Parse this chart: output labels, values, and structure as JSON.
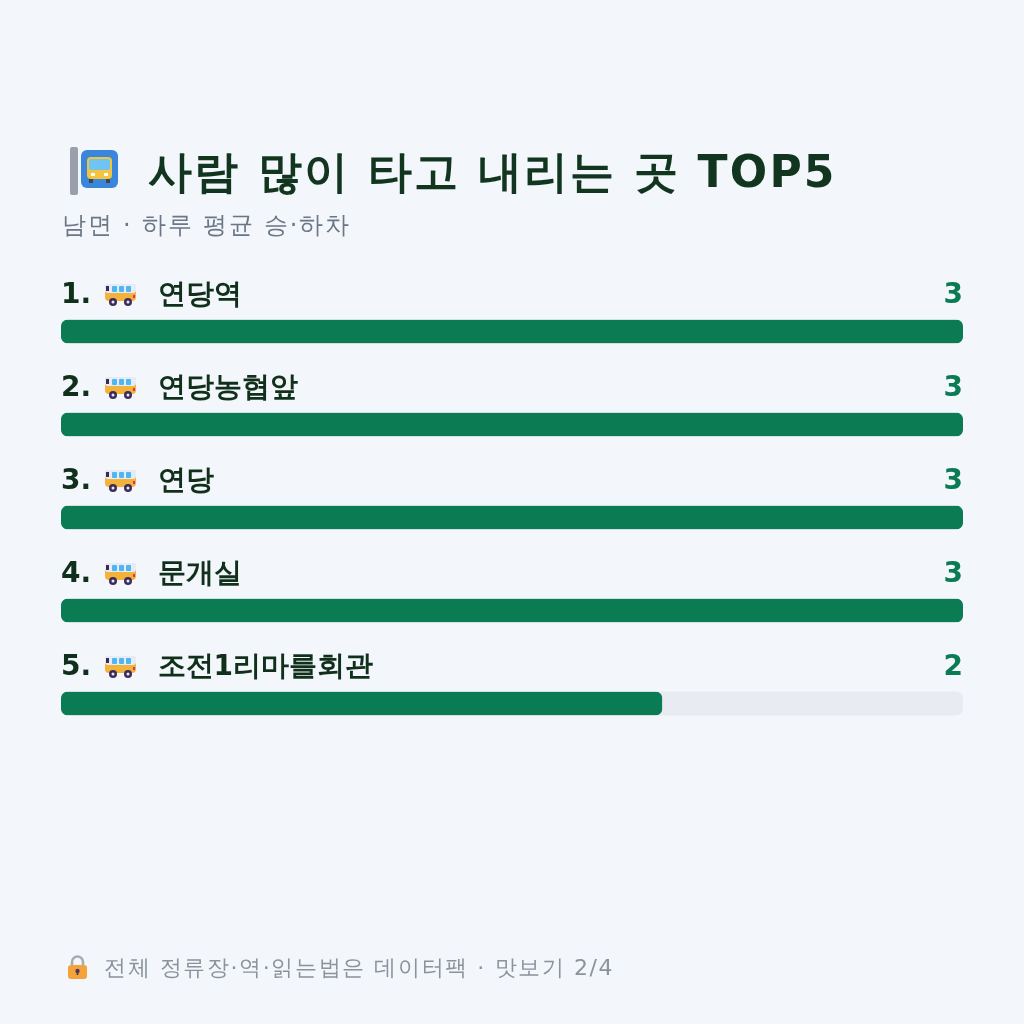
{
  "chart_data": {
    "type": "bar",
    "orientation": "horizontal",
    "title": "사람 많이 타고 내리는 곳 TOP5",
    "subtitle": "남면 · 하루 평균 승·하차",
    "categories": [
      "연당역",
      "연당농협앞",
      "연당",
      "문개실",
      "조전1리마를회관"
    ],
    "values": [
      3,
      3,
      3,
      3,
      2
    ],
    "color": "#0a7b53",
    "xlim": [
      0,
      3
    ],
    "data_labels": true,
    "tick_labels": "y",
    "annotations": [
      "1.",
      "2.",
      "3.",
      "4.",
      "5.",
      "전체 정류장·역·읽는법은 데이터팩 · 맛보기 2/4"
    ]
  }
}
